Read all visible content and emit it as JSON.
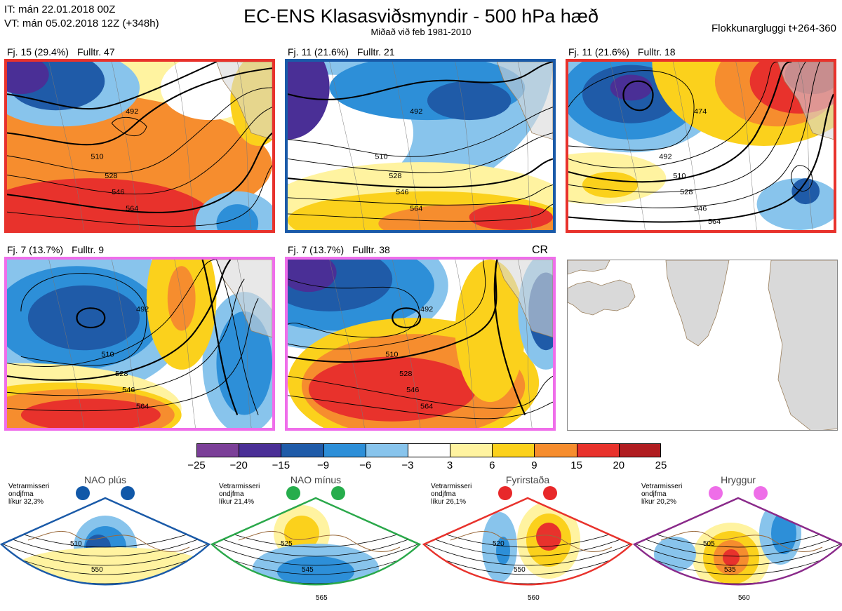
{
  "header": {
    "it_line": "IT: mán 22.01.2018 00Z",
    "vt_line": "VT: mán 05.02.2018 12Z  (+348h)",
    "title": "EC-ENS Klasasviðsmyndir - 500 hPa hæð",
    "subtitle": "Miðað við feb 1981-2010",
    "window": "Flokkunargluggi t+264-360"
  },
  "colors": {
    "red_frame": "#e8322c",
    "blue_frame": "#1a5aa8",
    "pink_frame": "#ef6eea",
    "green_frame": "#2aa84a",
    "purple_frame": "#8a2a8a"
  },
  "panels": [
    {
      "fj": "Fj. 15 (29.4%)",
      "fulltr": "Fulltr. 47",
      "frame_color": "#e8322c",
      "contours": [
        "492",
        "510",
        "528",
        "546",
        "564"
      ]
    },
    {
      "fj": "Fj. 11 (21.6%)",
      "fulltr": "Fulltr. 21",
      "frame_color": "#1a5aa8",
      "contours": [
        "492",
        "510",
        "528",
        "546",
        "564"
      ]
    },
    {
      "fj": "Fj. 11 (21.6%)",
      "fulltr": "Fulltr. 18",
      "frame_color": "#e8322c",
      "contours": [
        "474",
        "492",
        "510",
        "528",
        "546",
        "564"
      ]
    },
    {
      "fj": "Fj. 7 (13.7%)",
      "fulltr": "Fulltr. 9",
      "frame_color": "#ef6eea",
      "contours": [
        "492",
        "510",
        "528",
        "546",
        "564"
      ]
    },
    {
      "fj": "Fj. 7 (13.7%)",
      "fulltr": "Fulltr. 38",
      "frame_color": "#ef6eea",
      "contours": [
        "492",
        "510",
        "528",
        "546",
        "564"
      ]
    }
  ],
  "cr_label": "CR",
  "colorbar": {
    "labels": [
      "−25",
      "−20",
      "−15",
      "−9",
      "−6",
      "−3",
      "3",
      "6",
      "9",
      "15",
      "20",
      "25"
    ],
    "colors": [
      "#7b3f98",
      "#4a2f96",
      "#1f5ba8",
      "#2d8fd8",
      "#88c4ec",
      "#ffffff",
      "#fff3a0",
      "#fbd11c",
      "#f68d2e",
      "#e8322c",
      "#b01c20"
    ]
  },
  "regimes": [
    {
      "title": "NAO plús",
      "note": [
        "Vetrarmisseri",
        "ondjfma",
        "líkur 32,3%"
      ],
      "frame_color": "#1a5aa8",
      "dot_color": "#1158a8",
      "contours": [
        "510",
        "550"
      ]
    },
    {
      "title": "NAO mínus",
      "note": [
        "Vetrarmisseri",
        "ondjfma",
        "líkur 21,4%"
      ],
      "frame_color": "#2aa84a",
      "dot_color": "#26ad4c",
      "contours": [
        "525",
        "545",
        "565"
      ]
    },
    {
      "title": "Fyrirstaða",
      "note": [
        "Vetrarmisseri",
        "ondjfma",
        "líkur 26,1%"
      ],
      "frame_color": "#e8322c",
      "dot_color": "#e8282a",
      "contours": [
        "520",
        "550",
        "560"
      ]
    },
    {
      "title": "Hryggur",
      "note": [
        "Vetrarmisseri",
        "ondjfma",
        "líkur 20,2%"
      ],
      "frame_color": "#8a2a8a",
      "dot_color": "#ee6ee8",
      "contours": [
        "505",
        "535",
        "560"
      ]
    }
  ]
}
